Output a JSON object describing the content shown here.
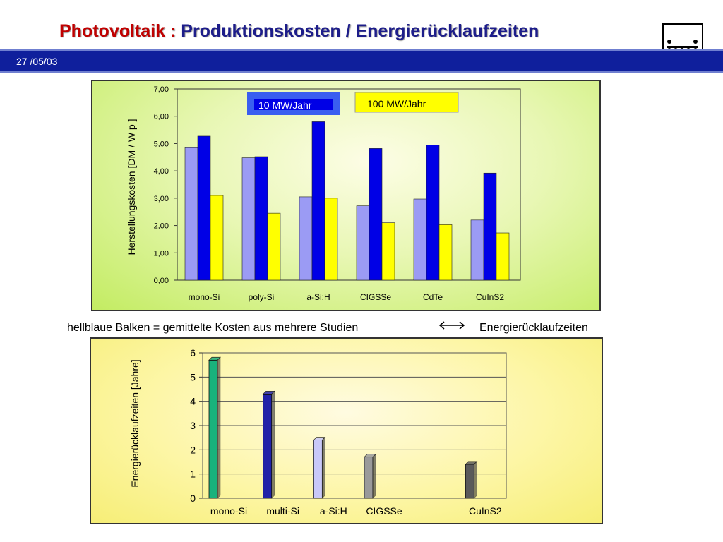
{
  "header": {
    "title_prefix": "Photovoltaik : ",
    "title_main": "Produktionskosten / Energierücklaufzeiten",
    "date": "27 /05/03"
  },
  "captions": {
    "left": "hellblaue Balken = gemittelte Kosten aus mehrere Studien",
    "right": "Energierücklaufzeiten"
  },
  "colors": {
    "light_blue": "#9b9bf4",
    "blue": "#0000e6",
    "yellow": "#ffff00",
    "header_bar": "#0f1f9c"
  },
  "chart_data": [
    {
      "type": "bar",
      "ylabel": "Herstellungskosten [DM / W p ]",
      "ylim": [
        0,
        7
      ],
      "yticks": [
        "0,00",
        "1,00",
        "2,00",
        "3,00",
        "4,00",
        "5,00",
        "6,00",
        "7,00"
      ],
      "categories": [
        "mono-Si",
        "poly-Si",
        "a-Si:H",
        "CIGSSe",
        "CdTe",
        "CuInS2"
      ],
      "series": [
        {
          "values": [
            4.85,
            4.48,
            3.05,
            2.72,
            2.97,
            2.2
          ]
        },
        {
          "name": "10 MW/Jahr",
          "values": [
            5.27,
            4.52,
            5.8,
            4.82,
            4.95,
            3.92
          ]
        },
        {
          "name": "100 MW/Jahr",
          "values": [
            3.1,
            2.45,
            3.0,
            2.1,
            2.03,
            1.73
          ]
        }
      ],
      "legend": [
        "10 MW/Jahr",
        "100 MW/Jahr"
      ],
      "grid": false
    },
    {
      "type": "bar",
      "ylabel": "Energierücklaufzeiten [Jahre]",
      "ylim": [
        0,
        6
      ],
      "yticks": [
        "0",
        "1",
        "2",
        "3",
        "4",
        "5",
        "6"
      ],
      "categories": [
        "mono-Si",
        "multi-Si",
        "a-Si:H",
        "CIGSSe",
        "",
        "CuInS2"
      ],
      "values": [
        5.7,
        4.3,
        2.4,
        1.7,
        null,
        1.4
      ],
      "bar_colors": [
        "#19b27c",
        "#2222a8",
        "#c8c8f8",
        "#9a9a9a",
        "",
        "#5a5a5a"
      ],
      "grid": true
    }
  ]
}
